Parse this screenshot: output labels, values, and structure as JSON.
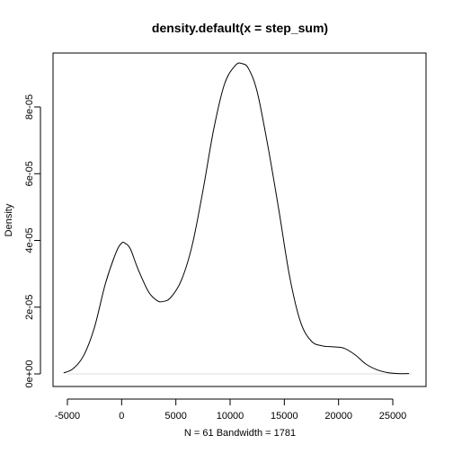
{
  "chart_data": {
    "type": "line",
    "title": "density.default(x = step_sum)",
    "xlabel": "N = 61   Bandwidth = 1781",
    "ylabel": "Density",
    "xlim": [
      -5000,
      26500
    ],
    "ylim": [
      0,
      9.35e-05
    ],
    "x_ticks": [
      -5000,
      0,
      5000,
      10000,
      15000,
      20000,
      25000
    ],
    "x_tick_labels": [
      "-5000",
      "0",
      "5000",
      "10000",
      "15000",
      "20000",
      "25000"
    ],
    "y_ticks": [
      0,
      2e-05,
      4e-05,
      6e-05,
      8e-05
    ],
    "y_tick_labels": [
      "0e+00",
      "2e-05",
      "4e-05",
      "6e-05",
      "8e-05"
    ],
    "grid": false,
    "series": [
      {
        "x": [
          -5344,
          -4500,
          -3500,
          -2500,
          -1500,
          -500,
          0,
          300,
          800,
          1500,
          2500,
          3300,
          3800,
          4500,
          5500,
          6500,
          7500,
          8500,
          9500,
          10500,
          11100,
          11700,
          12500,
          13500,
          14500,
          15500,
          16500,
          17500,
          18500,
          19500,
          20500,
          21500,
          22500,
          23500,
          24500,
          25500,
          26500
        ],
        "y": [
          3e-07,
          1.5e-06,
          5.5e-06,
          1.4e-05,
          2.7e-05,
          3.65e-05,
          3.92e-05,
          3.92e-05,
          3.75e-05,
          3.15e-05,
          2.45e-05,
          2.19e-05,
          2.17e-05,
          2.28e-05,
          2.8e-05,
          3.85e-05,
          5.5e-05,
          7.35e-05,
          8.7e-05,
          9.25e-05,
          9.3e-05,
          9.15e-05,
          8.45e-05,
          6.8e-05,
          4.9e-05,
          2.9e-05,
          1.55e-05,
          9.8e-06,
          8.4e-06,
          8.1e-06,
          7.7e-06,
          5.8e-06,
          3e-06,
          1.3e-06,
          4e-07,
          1e-07,
          1e-07
        ]
      }
    ]
  }
}
